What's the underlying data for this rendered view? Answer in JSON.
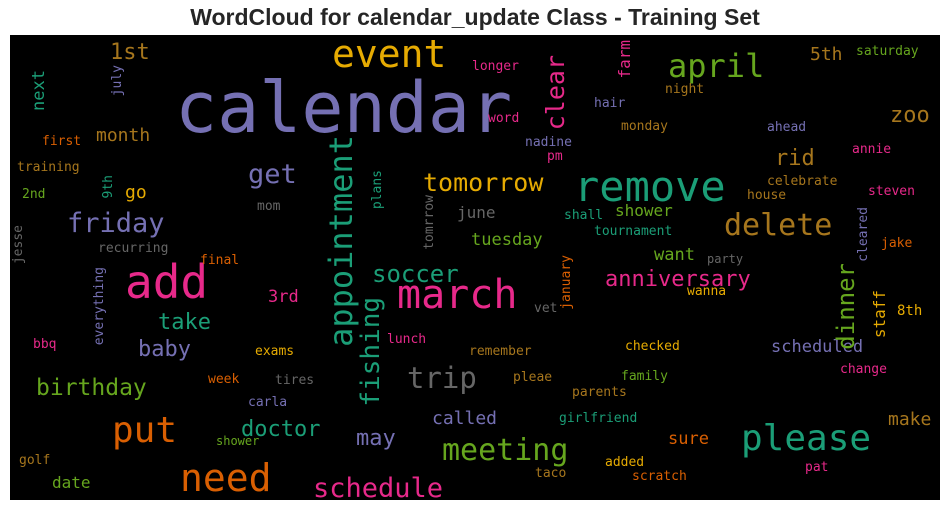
{
  "title": "WordCloud for calendar_update Class - Training Set",
  "palette": {
    "purple": "#7570b3",
    "orange": "#d95f02",
    "teal": "#1b9e77",
    "magenta": "#e7298a",
    "green": "#66a61e",
    "gold": "#e6ab02",
    "brown": "#a6761d",
    "gray": "#666666",
    "background": "#000000"
  },
  "words": {
    "calendar": "calendar",
    "add": "add",
    "remove": "remove",
    "march": "march",
    "appointment": "appointment",
    "event": "event",
    "need": "need",
    "please": "please",
    "put": "put",
    "april": "april",
    "meeting": "meeting",
    "delete": "delete",
    "trip": "trip",
    "schedule": "schedule",
    "tomorrow": "tomorrow",
    "friday": "friday",
    "clear": "clear",
    "fishing": "fishing",
    "soccer": "soccer",
    "get": "get",
    "dinner": "dinner",
    "birthday": "birthday",
    "anniversary": "anniversary",
    "doctor": "doctor",
    "take": "take",
    "baby": "baby",
    "may": "may",
    "zoo": "zoo",
    "rid": "rid",
    "1st": "1st",
    "tuesday": "tuesday",
    "called": "called",
    "scheduled": "scheduled",
    "3rd": "3rd",
    "sure": "sure",
    "shower": "shower",
    "want": "want",
    "make": "make",
    "month": "month",
    "go": "go",
    "june": "june",
    "5th": "5th",
    "next": "next",
    "staff": "staff",
    "date": "date",
    "farm": "farm",
    "8th": "8th",
    "saturday": "saturday",
    "longer": "longer",
    "july": "july",
    "night": "night",
    "hair": "hair",
    "word": "word",
    "monday": "monday",
    "ahead": "ahead",
    "first": "first",
    "nadine": "nadine",
    "pm": "pm",
    "annie": "annie",
    "training": "training",
    "celebrate": "celebrate",
    "2nd": "2nd",
    "9th": "9th",
    "mom": "mom",
    "plans": "plans",
    "house": "house",
    "steven": "steven",
    "tomrrow": "tomrrow",
    "shall": "shall",
    "tournament": "tournament",
    "cleared": "cleared",
    "jesse": "jesse",
    "recurring": "recurring",
    "jake": "jake",
    "final": "final",
    "party": "party",
    "everything": "everything",
    "january": "january",
    "wanna": "wanna",
    "vet": "vet",
    "bbq": "bbq",
    "lunch": "lunch",
    "exams": "exams",
    "remember": "remember",
    "checked": "checked",
    "change": "change",
    "week": "week",
    "tires": "tires",
    "pleae": "pleae",
    "family": "family",
    "carla": "carla",
    "parents": "parents",
    "girlfriend": "girlfriend",
    "golf": "golf",
    "added": "added",
    "taco": "taco",
    "pat": "pat",
    "scratch": "scratch",
    "shower_small": "shower"
  }
}
